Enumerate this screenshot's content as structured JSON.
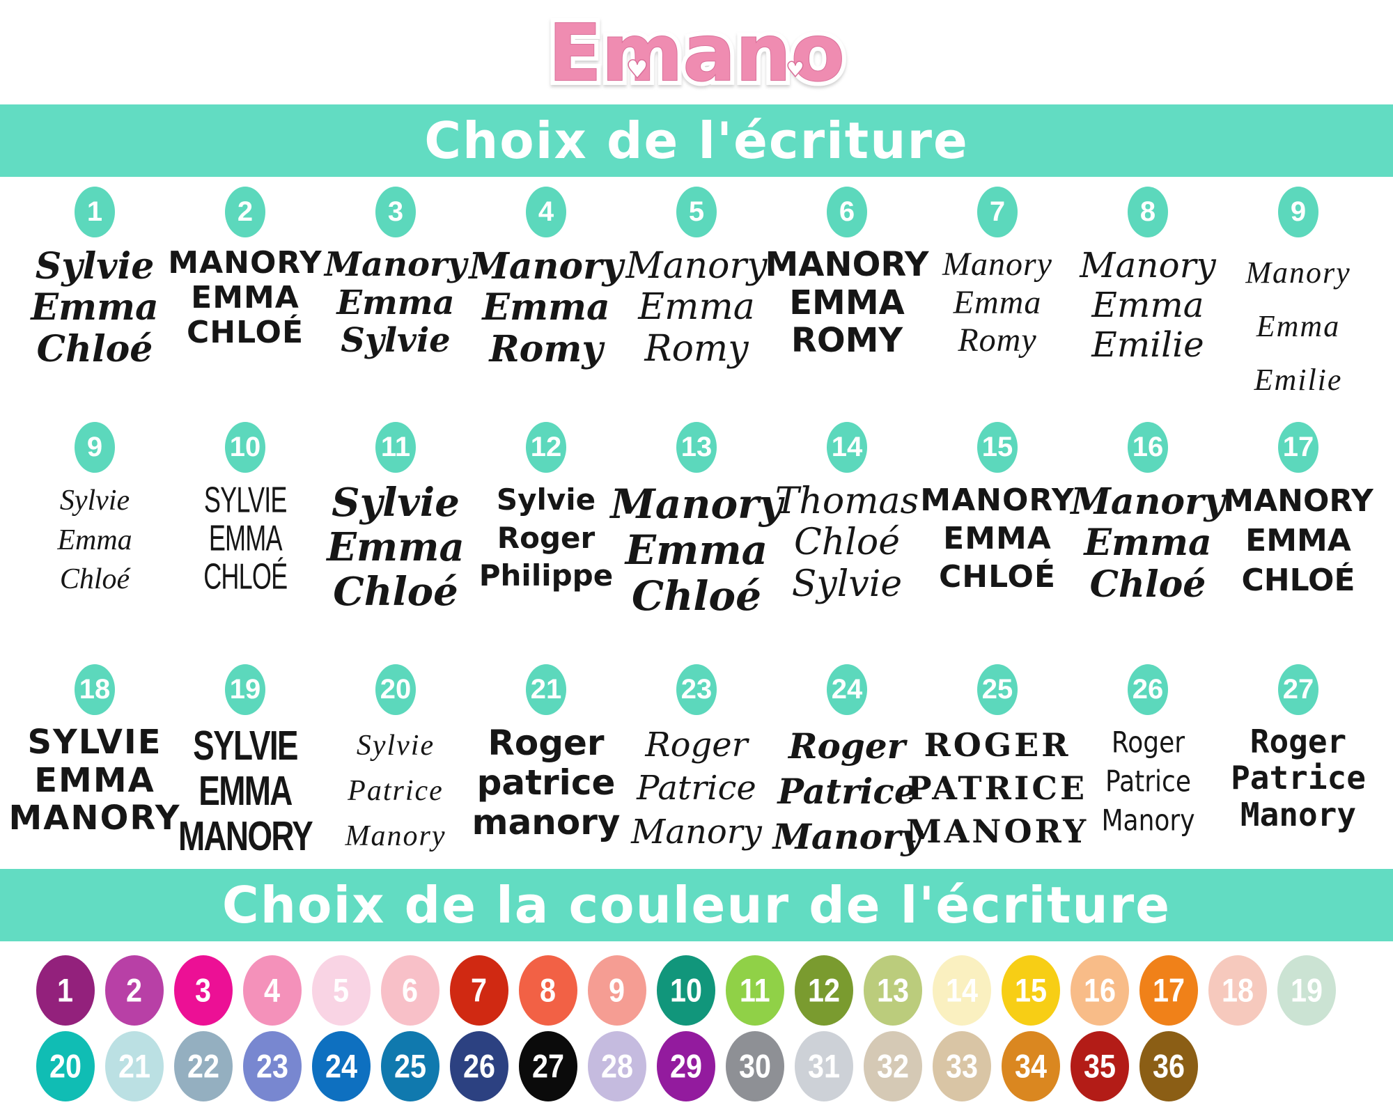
{
  "logo": {
    "text": "Emano",
    "color": "#ef8cb1",
    "outline": "#ffffff",
    "heart_icon": "♥"
  },
  "banners": {
    "writing": "Choix de l'écriture",
    "color": "Choix de la couleur de l'écriture",
    "background": "#62dcc2"
  },
  "badge_color": "#5cd8bc",
  "font_rows": [
    [
      {
        "num": "1",
        "style": "bold-script",
        "lines": [
          "Sylvie",
          "Emma",
          "Chloé"
        ]
      },
      {
        "num": "2",
        "style": "brush-caps",
        "lines": [
          "MANORY",
          "EMMA",
          "CHLOÉ"
        ]
      },
      {
        "num": "3",
        "style": "brush-script",
        "lines": [
          "Manory",
          "Emma",
          "Sylvie"
        ]
      },
      {
        "num": "4",
        "style": "swash-script-bold",
        "lines": [
          "Manory",
          "Emma",
          "Romy"
        ]
      },
      {
        "num": "5",
        "style": "swash-script",
        "lines": [
          "Manory",
          "Emma",
          "Romy"
        ]
      },
      {
        "num": "6",
        "style": "rounded-caps",
        "lines": [
          "MANORY",
          "EMMA",
          "ROMY"
        ]
      },
      {
        "num": "7",
        "style": "elegant-script",
        "lines": [
          "Manory",
          "Emma",
          "Romy"
        ]
      },
      {
        "num": "8",
        "style": "medium-script",
        "lines": [
          "Manory",
          "Emma",
          "Emilie"
        ]
      },
      {
        "num": "9",
        "style": "fine-calligraphy",
        "lines": [
          "Manory",
          "Emma",
          "Emilie"
        ]
      }
    ],
    [
      {
        "num": "9",
        "style": "light-script",
        "lines": [
          "Sylvie",
          "Emma",
          "Chloé"
        ]
      },
      {
        "num": "10",
        "style": "condensed-thin-caps",
        "lines": [
          "SYLVIE",
          "EMMA",
          "CHLOÉ"
        ]
      },
      {
        "num": "11",
        "style": "bold-script-big",
        "lines": [
          "Sylvie",
          "Emma",
          "Chloé"
        ]
      },
      {
        "num": "12",
        "style": "rounded-bold-sans",
        "lines": [
          "Sylvie",
          "Roger",
          "Philippe"
        ]
      },
      {
        "num": "13",
        "style": "swirl-script-big",
        "lines": [
          "Manory",
          "Emma",
          "Chloé"
        ]
      },
      {
        "num": "14",
        "style": "calligraphy-script",
        "lines": [
          "Thomas",
          "Chloé",
          "Sylvie"
        ]
      },
      {
        "num": "15",
        "style": "hand-caps",
        "lines": [
          "MANORY",
          "EMMA",
          "CHLOÉ"
        ]
      },
      {
        "num": "16",
        "style": "flourish-script",
        "lines": [
          "Manory",
          "Emma",
          "Chloé"
        ]
      },
      {
        "num": "17",
        "style": "clean-caps",
        "lines": [
          "MANORY",
          "EMMA",
          "CHLOÉ"
        ]
      }
    ],
    [
      {
        "num": "18",
        "style": "toon-caps",
        "lines": [
          "SYLVIE",
          "EMMA",
          "MANORY"
        ]
      },
      {
        "num": "19",
        "style": "condensed-bold-caps",
        "lines": [
          "SYLVIE",
          "EMMA",
          "MANORY"
        ]
      },
      {
        "num": "20",
        "style": "signature-thin",
        "lines": [
          "Sylvie",
          "Patrice",
          "Manory"
        ]
      },
      {
        "num": "21",
        "style": "chunky-round",
        "lines": [
          "Roger",
          "patrice",
          "manory"
        ]
      },
      {
        "num": "23",
        "style": "formal-script",
        "lines": [
          "Roger",
          "Patrice",
          "Manory"
        ]
      },
      {
        "num": "24",
        "style": "retro-script",
        "lines": [
          "Roger",
          "Patrice",
          "Manory"
        ]
      },
      {
        "num": "25",
        "style": "stencil-caps",
        "lines": [
          "ROGER",
          "PATRICE",
          "MANORY"
        ]
      },
      {
        "num": "26",
        "style": "thin-hand",
        "lines": [
          "Roger",
          "Patrice",
          "Manory"
        ]
      },
      {
        "num": "27",
        "style": "typewriter",
        "lines": [
          "Roger",
          "Patrice",
          "Manory"
        ]
      }
    ]
  ],
  "palette_rows": [
    [
      {
        "num": "1",
        "color": "#93217c"
      },
      {
        "num": "2",
        "color": "#b840a6"
      },
      {
        "num": "3",
        "color": "#ec1095"
      },
      {
        "num": "4",
        "color": "#f491ba"
      },
      {
        "num": "5",
        "color": "#f9d4e4"
      },
      {
        "num": "6",
        "color": "#f8c0c8"
      },
      {
        "num": "7",
        "color": "#d02912"
      },
      {
        "num": "8",
        "color": "#f26145"
      },
      {
        "num": "9",
        "color": "#f59d93"
      },
      {
        "num": "10",
        "color": "#11967b"
      },
      {
        "num": "11",
        "color": "#90d147"
      },
      {
        "num": "12",
        "color": "#7a9b2f"
      },
      {
        "num": "13",
        "color": "#bbcc7c"
      },
      {
        "num": "14",
        "color": "#faf0c0"
      },
      {
        "num": "15",
        "color": "#f7ce15"
      },
      {
        "num": "16",
        "color": "#f8bc88"
      },
      {
        "num": "17",
        "color": "#f08119"
      },
      {
        "num": "18",
        "color": "#f6c9bd"
      },
      {
        "num": "19",
        "color": "#cbe3d3"
      }
    ],
    [
      {
        "num": "20",
        "color": "#10bdb4"
      },
      {
        "num": "21",
        "color": "#bbe0e3"
      },
      {
        "num": "22",
        "color": "#94afc0"
      },
      {
        "num": "23",
        "color": "#7887d0"
      },
      {
        "num": "24",
        "color": "#0e70c0"
      },
      {
        "num": "25",
        "color": "#1079ae"
      },
      {
        "num": "26",
        "color": "#2c4181"
      },
      {
        "num": "27",
        "color": "#0b0b0b"
      },
      {
        "num": "28",
        "color": "#c5bbdf"
      },
      {
        "num": "29",
        "color": "#931b9e"
      },
      {
        "num": "30",
        "color": "#8e9095"
      },
      {
        "num": "31",
        "color": "#cdd1d7"
      },
      {
        "num": "32",
        "color": "#d5c9b5"
      },
      {
        "num": "33",
        "color": "#d9c5a5"
      },
      {
        "num": "34",
        "color": "#da8720"
      },
      {
        "num": "35",
        "color": "#b31c17"
      },
      {
        "num": "36",
        "color": "#8b5e15"
      }
    ]
  ]
}
